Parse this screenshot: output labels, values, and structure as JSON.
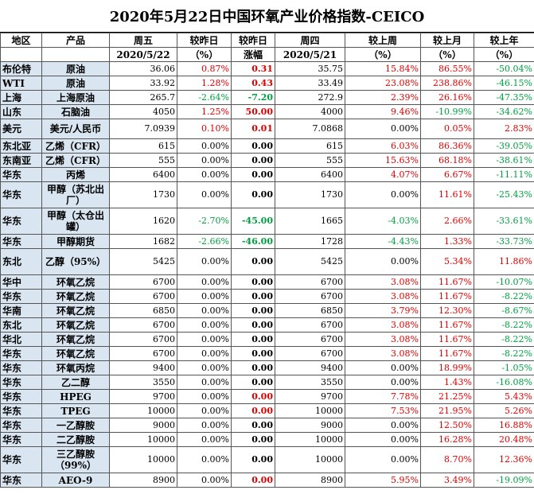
{
  "title": "2020年5月22日中国环氧产业价格指数-CEICO",
  "headers": {
    "row1": [
      "地区",
      "产品",
      "周五",
      "较昨日",
      "较昨日",
      "周四",
      "较上周",
      "较上月",
      "较上年"
    ],
    "row2": [
      "",
      "",
      "2020/5/22",
      "（%）",
      "涨幅",
      "2020/5/21",
      "（%）",
      "（%）",
      "（%）"
    ]
  },
  "rows": [
    {
      "region": "布伦特",
      "product": "原油",
      "fri": "36.06",
      "dpct": "0.87%",
      "damt": "0.31",
      "thu": "35.75",
      "wk": "15.84%",
      "mo": "86.55%",
      "yr": "-50.04%",
      "c": [
        "red",
        "red",
        "red",
        "green"
      ],
      "h": ""
    },
    {
      "region": "WTI",
      "product": "原油",
      "fri": "33.92",
      "dpct": "1.28%",
      "damt": "0.43",
      "thu": "33.49",
      "wk": "23.08%",
      "mo": "238.86%",
      "yr": "-46.15%",
      "c": [
        "red",
        "red",
        "red",
        "green"
      ],
      "h": ""
    },
    {
      "region": "上海",
      "product": "上海原油",
      "fri": "265.7",
      "dpct": "-2.64%",
      "damt": "-7.20",
      "thu": "272.9",
      "wk": "2.39%",
      "mo": "26.16%",
      "yr": "-47.35%",
      "c": [
        "green",
        "green",
        "red",
        "green"
      ],
      "h": ""
    },
    {
      "region": "山东",
      "product": "石脑油",
      "fri": "4050",
      "dpct": "1.25%",
      "damt": "50.00",
      "thu": "4000",
      "wk": "9.46%",
      "mo": "-10.99%",
      "yr": "-34.62%",
      "c": [
        "red",
        "red",
        "red",
        "green"
      ],
      "h": ""
    },
    {
      "region": "美元",
      "product": "美元/人民币",
      "fri": "7.0939",
      "dpct": "0.10%",
      "damt": "0.01",
      "thu": "7.0868",
      "wk": "0.00%",
      "mo": "0.05%",
      "yr": "2.83%",
      "c": [
        "red",
        "red",
        "red",
        "red"
      ],
      "h": "mid"
    },
    {
      "region": "东北亚",
      "product": "乙烯（CFR）",
      "fri": "615",
      "dpct": "0.00%",
      "damt": "0.00",
      "thu": "615",
      "wk": "6.03%",
      "mo": "86.36%",
      "yr": "-39.05%",
      "c": [
        "",
        "",
        "red",
        "green"
      ],
      "h": ""
    },
    {
      "region": "东南亚",
      "product": "乙烯（CFR）",
      "fri": "555",
      "dpct": "0.00%",
      "damt": "0.00",
      "thu": "555",
      "wk": "15.63%",
      "mo": "68.18%",
      "yr": "-38.61%",
      "c": [
        "",
        "",
        "red",
        "green"
      ],
      "h": ""
    },
    {
      "region": "华东",
      "product": "丙烯",
      "fri": "6400",
      "dpct": "0.00%",
      "damt": "0.00",
      "thu": "6400",
      "wk": "4.07%",
      "mo": "6.67%",
      "yr": "-11.11%",
      "c": [
        "",
        "",
        "red",
        "green"
      ],
      "h": ""
    },
    {
      "region": "华东",
      "product": "甲醇（苏北出厂）",
      "fri": "1730",
      "dpct": "0.00%",
      "damt": "0.00",
      "thu": "1730",
      "wk": "0.00%",
      "mo": "11.61%",
      "yr": "-25.43%",
      "c": [
        "",
        "",
        "",
        "green"
      ],
      "h": "tall"
    },
    {
      "region": "华东",
      "product": "甲醇（太仓出罐）",
      "fri": "1620",
      "dpct": "-2.70%",
      "damt": "-45.00",
      "thu": "1665",
      "wk": "-4.03%",
      "mo": "2.66%",
      "yr": "-33.61%",
      "c": [
        "green",
        "green",
        "green",
        "green"
      ],
      "h": "tall"
    },
    {
      "region": "华东",
      "product": "甲醇期货",
      "fri": "1682",
      "dpct": "-2.66%",
      "damt": "-46.00",
      "thu": "1728",
      "wk": "-4.43%",
      "mo": "1.33%",
      "yr": "-33.73%",
      "c": [
        "green",
        "green",
        "green",
        "green"
      ],
      "h": ""
    },
    {
      "region": "东北",
      "product": "乙醇（95%）",
      "fri": "5425",
      "dpct": "0.00%",
      "damt": "0.00",
      "thu": "5425",
      "wk": "0.00%",
      "mo": "5.34%",
      "yr": "11.86%",
      "c": [
        "",
        "",
        "",
        "red"
      ],
      "h": "tall"
    },
    {
      "region": "华中",
      "product": "环氧乙烷",
      "fri": "6700",
      "dpct": "0.00%",
      "damt": "0.00",
      "thu": "6700",
      "wk": "3.08%",
      "mo": "11.67%",
      "yr": "-10.07%",
      "c": [
        "",
        "",
        "red",
        "green"
      ],
      "h": ""
    },
    {
      "region": "华东",
      "product": "环氧乙烷",
      "fri": "6700",
      "dpct": "0.00%",
      "damt": "0.00",
      "thu": "6700",
      "wk": "3.08%",
      "mo": "11.67%",
      "yr": "-8.22%",
      "c": [
        "",
        "",
        "red",
        "green"
      ],
      "h": ""
    },
    {
      "region": "华南",
      "product": "环氧乙烷",
      "fri": "6850",
      "dpct": "0.00%",
      "damt": "0.00",
      "thu": "6850",
      "wk": "3.79%",
      "mo": "12.30%",
      "yr": "-8.67%",
      "c": [
        "",
        "",
        "red",
        "green"
      ],
      "h": ""
    },
    {
      "region": "东北",
      "product": "环氧乙烷",
      "fri": "6700",
      "dpct": "0.00%",
      "damt": "0.00",
      "thu": "6700",
      "wk": "3.08%",
      "mo": "11.67%",
      "yr": "-8.22%",
      "c": [
        "",
        "",
        "red",
        "green"
      ],
      "h": ""
    },
    {
      "region": "华北",
      "product": "环氧乙烷",
      "fri": "6700",
      "dpct": "0.00%",
      "damt": "0.00",
      "thu": "6700",
      "wk": "3.08%",
      "mo": "11.67%",
      "yr": "-8.22%",
      "c": [
        "",
        "",
        "red",
        "green"
      ],
      "h": ""
    },
    {
      "region": "华东",
      "product": "环氧乙烷",
      "fri": "6700",
      "dpct": "0.00%",
      "damt": "0.00",
      "thu": "6700",
      "wk": "3.08%",
      "mo": "11.67%",
      "yr": "-8.22%",
      "c": [
        "",
        "",
        "red",
        "green"
      ],
      "h": ""
    },
    {
      "region": "华东",
      "product": "环氧丙烷",
      "fri": "9400",
      "dpct": "0.00%",
      "damt": "0.00",
      "thu": "9400",
      "wk": "0.00%",
      "mo": "18.99%",
      "yr": "-1.05%",
      "c": [
        "",
        "",
        "red",
        "green"
      ],
      "h": ""
    },
    {
      "region": "华东",
      "product": "乙二醇",
      "fri": "3550",
      "dpct": "0.00%",
      "damt": "0.00",
      "thu": "3550",
      "wk": "0.00%",
      "mo": "1.43%",
      "yr": "-16.08%",
      "c": [
        "",
        "",
        "red",
        "green"
      ],
      "h": ""
    },
    {
      "region": "华东",
      "product": "HPEG",
      "fri": "9700",
      "dpct": "0.00%",
      "damt": "0.00",
      "thu": "9700",
      "wk": "7.78%",
      "mo": "21.25%",
      "yr": "5.43%",
      "c": [
        "",
        "red",
        "red",
        "red"
      ],
      "h": ""
    },
    {
      "region": "华东",
      "product": "TPEG",
      "fri": "10000",
      "dpct": "0.00%",
      "damt": "0.00",
      "thu": "10000",
      "wk": "7.53%",
      "mo": "21.95%",
      "yr": "5.26%",
      "c": [
        "",
        "red",
        "red",
        "red"
      ],
      "h": ""
    },
    {
      "region": "华东",
      "product": "一乙醇胺",
      "fri": "9000",
      "dpct": "0.00%",
      "damt": "0.00",
      "thu": "9000",
      "wk": "0.00%",
      "mo": "12.50%",
      "yr": "16.88%",
      "c": [
        "",
        "",
        "red",
        "red"
      ],
      "h": ""
    },
    {
      "region": "华东",
      "product": "二乙醇胺",
      "fri": "10000",
      "dpct": "0.00%",
      "damt": "0.00",
      "thu": "10000",
      "wk": "0.00%",
      "mo": "16.28%",
      "yr": "20.48%",
      "c": [
        "",
        "",
        "red",
        "red"
      ],
      "h": ""
    },
    {
      "region": "华东",
      "product": "三乙醇胺（99%）",
      "fri": "10000",
      "dpct": "0.00%",
      "damt": "0.00",
      "thu": "10000",
      "wk": "0.00%",
      "mo": "8.70%",
      "yr": "12.36%",
      "c": [
        "",
        "",
        "red",
        "red"
      ],
      "h": "tall"
    },
    {
      "region": "华东",
      "product": "AEO-9",
      "fri": "8900",
      "dpct": "0.00%",
      "damt": "0.00",
      "thu": "8900",
      "wk": "5.95%",
      "mo": "3.49%",
      "yr": "-19.09%",
      "c": [
        "",
        "red",
        "red",
        "green"
      ],
      "h": ""
    }
  ]
}
